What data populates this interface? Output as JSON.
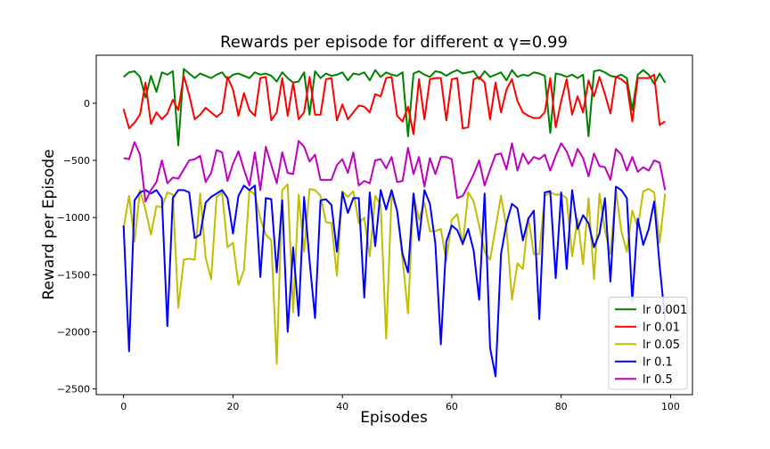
{
  "chart_data": {
    "type": "line",
    "title": "Rewards per episode for different α γ=0.99",
    "xlabel": "Episodes",
    "ylabel": "Reward per Episode",
    "xlim": [
      -5,
      104
    ],
    "ylim": [
      -2550,
      420
    ],
    "xticks": [
      0,
      20,
      40,
      60,
      80,
      100
    ],
    "yticks": [
      0,
      -500,
      -1000,
      -1500,
      -2000,
      -2500
    ],
    "ytick_labels": [
      "0",
      "−500",
      "−1000",
      "−1500",
      "−2000",
      "−2500"
    ],
    "grid": false,
    "legend_position": "lower-right",
    "series": [
      {
        "name": "lr 0.001",
        "color": "#008000",
        "values": [
          230,
          270,
          280,
          230,
          50,
          240,
          100,
          270,
          250,
          280,
          -370,
          300,
          260,
          220,
          260,
          240,
          220,
          250,
          270,
          210,
          250,
          260,
          240,
          220,
          270,
          250,
          260,
          240,
          190,
          270,
          220,
          180,
          190,
          270,
          -100,
          280,
          220,
          260,
          240,
          250,
          270,
          200,
          260,
          250,
          270,
          200,
          290,
          230,
          270,
          250,
          240,
          270,
          -290,
          260,
          280,
          250,
          230,
          280,
          270,
          240,
          270,
          290,
          260,
          270,
          280,
          210,
          280,
          230,
          250,
          270,
          200,
          290,
          230,
          250,
          240,
          270,
          260,
          240,
          -260,
          260,
          250,
          230,
          250,
          220,
          250,
          -290,
          280,
          290,
          270,
          240,
          230,
          250,
          220,
          -60,
          250,
          290,
          250,
          170,
          260,
          180
        ]
      },
      {
        "name": "lr 0.01",
        "color": "#ff0000",
        "values": [
          -50,
          -220,
          -170,
          -100,
          180,
          -180,
          -80,
          -140,
          -90,
          30,
          -60,
          240,
          70,
          -140,
          -100,
          -40,
          -80,
          -120,
          -80,
          230,
          120,
          -110,
          90,
          -60,
          -110,
          220,
          230,
          -150,
          -80,
          220,
          -110,
          180,
          -140,
          -80,
          230,
          -100,
          -100,
          210,
          220,
          -150,
          -10,
          -140,
          -80,
          -20,
          -30,
          -80,
          80,
          60,
          220,
          230,
          -110,
          -160,
          -30,
          -270,
          210,
          -140,
          210,
          220,
          220,
          -150,
          210,
          220,
          -220,
          -210,
          210,
          230,
          180,
          -140,
          180,
          -80,
          120,
          210,
          20,
          -80,
          -110,
          -130,
          -130,
          -80,
          220,
          -210,
          20,
          210,
          -100,
          60,
          -80,
          200,
          60,
          230,
          80,
          -90,
          230,
          210,
          170,
          -160,
          220,
          220,
          220,
          250,
          -190,
          -160
        ]
      },
      {
        "name": "lr 0.05",
        "color": "#bfbf00",
        "values": [
          -1090,
          -810,
          -1210,
          -760,
          -930,
          -1150,
          -900,
          -910,
          -780,
          -800,
          -1790,
          -1370,
          -1360,
          -1370,
          -790,
          -1350,
          -1540,
          -820,
          -780,
          -1260,
          -1220,
          -1590,
          -1460,
          -760,
          -800,
          -1010,
          -1150,
          -1200,
          -2280,
          -760,
          -710,
          -1830,
          -800,
          -1300,
          -750,
          -760,
          -810,
          -1040,
          -1050,
          -1510,
          -770,
          -820,
          -770,
          -1050,
          -1000,
          -1340,
          -810,
          -890,
          -2060,
          -800,
          -940,
          -1360,
          -1840,
          -800,
          -1020,
          -870,
          -1120,
          -1120,
          -1100,
          -1380,
          -1020,
          -970,
          -1240,
          -780,
          -860,
          -1070,
          -1300,
          -1370,
          -1090,
          -810,
          -1090,
          -1720,
          -1400,
          -1450,
          -1000,
          -1320,
          -1320,
          -810,
          -780,
          -800,
          -800,
          -830,
          -1340,
          -1010,
          -1410,
          -830,
          -1540,
          -790,
          -1110,
          -1320,
          -760,
          -1120,
          -1300,
          -940,
          -1090,
          -770,
          -750,
          -780,
          -1220,
          -790
        ]
      },
      {
        "name": "lr 0.1",
        "color": "#0000ff",
        "values": [
          -1070,
          -2170,
          -850,
          -780,
          -760,
          -790,
          -760,
          -830,
          -1950,
          -830,
          -760,
          -760,
          -780,
          -1180,
          -1150,
          -870,
          -820,
          -790,
          -760,
          -830,
          -1140,
          -810,
          -720,
          -760,
          -720,
          -1520,
          -830,
          -840,
          -1480,
          -850,
          -2000,
          -1260,
          -1860,
          -820,
          -1380,
          -1880,
          -850,
          -840,
          -890,
          -1300,
          -780,
          -960,
          -830,
          -830,
          -1700,
          -780,
          -1250,
          -760,
          -930,
          -760,
          -940,
          -1320,
          -1480,
          -790,
          -1200,
          -760,
          -880,
          -1230,
          -2110,
          -1210,
          -1070,
          -1110,
          -1230,
          -1100,
          -1290,
          -1720,
          -790,
          -2140,
          -2390,
          -1320,
          -1050,
          -880,
          -920,
          -1200,
          -1010,
          -940,
          -1890,
          -780,
          -770,
          -1530,
          -780,
          -1450,
          -760,
          -1100,
          -980,
          -1050,
          -1260,
          -1140,
          -830,
          -1560,
          -730,
          -760,
          -830,
          -1730,
          -1010,
          -1240,
          -1100,
          -860,
          -1420,
          -1900
        ]
      },
      {
        "name": "lr 0.5",
        "color": "#bf00bf",
        "values": [
          -480,
          -490,
          -340,
          -450,
          -860,
          -760,
          -690,
          -500,
          -700,
          -650,
          -660,
          -580,
          -500,
          -490,
          -460,
          -690,
          -610,
          -410,
          -430,
          -680,
          -530,
          -420,
          -580,
          -720,
          -430,
          -760,
          -380,
          -540,
          -700,
          -430,
          -610,
          -620,
          -330,
          -380,
          -510,
          -450,
          -670,
          -670,
          -670,
          -540,
          -490,
          -610,
          -430,
          -720,
          -680,
          -700,
          -500,
          -490,
          -570,
          -470,
          -690,
          -680,
          -390,
          -620,
          -470,
          -730,
          -480,
          -620,
          -470,
          -470,
          -490,
          -830,
          -810,
          -720,
          -620,
          -500,
          -720,
          -580,
          -450,
          -440,
          -580,
          -350,
          -590,
          -440,
          -530,
          -470,
          -490,
          -450,
          -590,
          -460,
          -350,
          -420,
          -550,
          -400,
          -480,
          -640,
          -440,
          -550,
          -560,
          -670,
          -400,
          -450,
          -590,
          -470,
          -600,
          -560,
          -590,
          -500,
          -520,
          -760
        ]
      }
    ]
  }
}
